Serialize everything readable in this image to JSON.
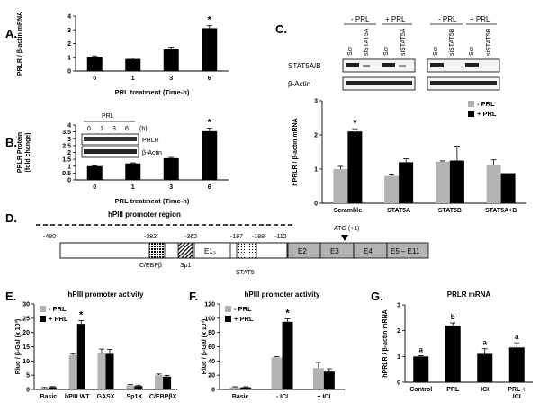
{
  "panel_labels": {
    "A": "A.",
    "B": "B.",
    "C": "C.",
    "D": "D.",
    "E": "E.",
    "F": "F.",
    "G": "G."
  },
  "chart_data": [
    {
      "id": "A",
      "type": "bar",
      "ylabel": "PRLR / β-actin mRNA",
      "xlabel": "PRL treatment (Time-h)",
      "categories": [
        "0",
        "1",
        "3",
        "6"
      ],
      "values": [
        1.05,
        0.88,
        1.58,
        3.12
      ],
      "errors": [
        0.05,
        0.06,
        0.15,
        0.18
      ],
      "ylim": [
        0,
        4
      ],
      "yticks": [
        "0",
        "1",
        "2",
        "3",
        "4"
      ],
      "significance": [
        {
          "index": 3,
          "label": "*"
        }
      ]
    },
    {
      "id": "B",
      "type": "bar",
      "ylabel": "PRLR Protein (fold change)",
      "xlabel": "PRL treatment (Time-h)",
      "categories": [
        "0",
        "1",
        "3",
        "6"
      ],
      "values": [
        1.0,
        1.2,
        1.58,
        3.55
      ],
      "errors": [
        0.03,
        0.04,
        0.06,
        0.22
      ],
      "ylim": [
        0,
        4
      ],
      "yticks": [
        "0",
        "0.5",
        "1",
        "1.5",
        "2",
        "2.5",
        "3",
        "3.5",
        "4"
      ],
      "significance": [
        {
          "index": 3,
          "label": "*"
        }
      ]
    },
    {
      "id": "C",
      "type": "bar",
      "ylabel": "hPRLR / β-actin mRNA",
      "categories": [
        "Scramble",
        "STAT5A",
        "STAT5B",
        "STAT5A+B"
      ],
      "series": [
        {
          "name": "- PRL",
          "color": "#b3b3b3",
          "values": [
            1.0,
            0.8,
            1.22,
            1.12
          ],
          "errors": [
            0.08,
            0.03,
            0.02,
            0.15
          ]
        },
        {
          "name": "+ PRL",
          "color": "#000000",
          "values": [
            2.1,
            1.2,
            1.25,
            0.88
          ],
          "errors": [
            0.08,
            0.1,
            0.42,
            0.0
          ]
        }
      ],
      "ylim": [
        0,
        3
      ],
      "yticks": [
        "0",
        "1",
        "2",
        "3"
      ],
      "legend": "top-right",
      "significance": [
        {
          "index": 0,
          "series": 1,
          "label": "*"
        }
      ]
    },
    {
      "id": "E",
      "type": "bar",
      "title": "hPIII promoter activity",
      "ylabel": "Rluc / β-Gal (x 10³)",
      "categories": [
        "Basic",
        "hPIII WT",
        "GASX",
        "Sp1X",
        "C/EBPβX"
      ],
      "series": [
        {
          "name": "- PRL",
          "color": "#b3b3b3",
          "values": [
            0.5,
            12,
            13,
            1.5,
            5
          ],
          "errors": [
            0.2,
            0.4,
            1.2,
            0.3,
            0.4
          ]
        },
        {
          "name": "+ PRL",
          "color": "#000000",
          "values": [
            0.8,
            23,
            12.5,
            1.2,
            4.5
          ],
          "errors": [
            0.2,
            1.2,
            1.5,
            0.3,
            0.4
          ]
        }
      ],
      "ylim": [
        0,
        30
      ],
      "yticks": [
        "0",
        "5",
        "10",
        "15",
        "20",
        "25",
        "30"
      ],
      "legend": "top-left",
      "significance": [
        {
          "index": 1,
          "series": 1,
          "label": "*"
        }
      ]
    },
    {
      "id": "F",
      "type": "bar",
      "title": "hPIII promoter activity",
      "ylabel": "Rluc / β-Gal (x 10³)",
      "categories": [
        "Basic",
        "- ICI",
        "+ ICI"
      ],
      "series": [
        {
          "name": "- PRL",
          "color": "#b3b3b3",
          "values": [
            3,
            45,
            30
          ],
          "errors": [
            0.8,
            1,
            8
          ]
        },
        {
          "name": "+ PRL",
          "color": "#000000",
          "values": [
            3,
            95,
            25
          ],
          "errors": [
            0.8,
            4,
            4
          ]
        }
      ],
      "ylim": [
        0,
        120
      ],
      "yticks": [
        "0",
        "20",
        "40",
        "60",
        "80",
        "100",
        "120"
      ],
      "legend": "top-left",
      "significance": [
        {
          "index": 1,
          "series": 1,
          "label": "*"
        }
      ]
    },
    {
      "id": "G",
      "type": "bar",
      "title": "PRLR mRNA",
      "ylabel": "hPRLR / β-actin mRNA",
      "categories": [
        "Control",
        "PRL",
        "ICI",
        "PRL + ICI"
      ],
      "values": [
        1.0,
        2.2,
        1.1,
        1.35
      ],
      "errors": [
        0.03,
        0.1,
        0.2,
        0.18
      ],
      "letters": [
        "a",
        "b",
        "a",
        "a"
      ],
      "ylim": [
        0,
        3
      ],
      "yticks": [
        "0",
        "1",
        "2",
        "3"
      ]
    }
  ],
  "blotB": {
    "prl_label": "PRL",
    "hours": [
      "0",
      "1",
      "3",
      "6"
    ],
    "unit": "(h)",
    "rows": [
      "PRLR",
      "β-Actin"
    ]
  },
  "blotC": {
    "groups": [
      {
        "header": "- PRL",
        "lanes": [
          "Scr",
          "siSTAT5A"
        ]
      },
      {
        "header": "+ PRL",
        "lanes": [
          "Scr",
          "siSTAT5A"
        ]
      },
      {
        "header": "- PRL",
        "lanes": [
          "Scr",
          "siSTAT5B"
        ]
      },
      {
        "header": "+ PRL",
        "lanes": [
          "Scr",
          "siSTAT5B"
        ]
      }
    ],
    "rows": [
      "STAT5A/B",
      "β-Actin"
    ]
  },
  "promoter": {
    "region_label": "hPIII promoter region",
    "atg": "ATG (+1)",
    "positions": [
      "-480",
      "-382",
      "-362",
      "-197",
      "-188",
      "-112"
    ],
    "elements": [
      "C/EBPβ",
      "Sp1",
      "STAT5"
    ],
    "exons": [
      "E1₃",
      "E2",
      "E3",
      "E4",
      "E5 – E11"
    ]
  }
}
